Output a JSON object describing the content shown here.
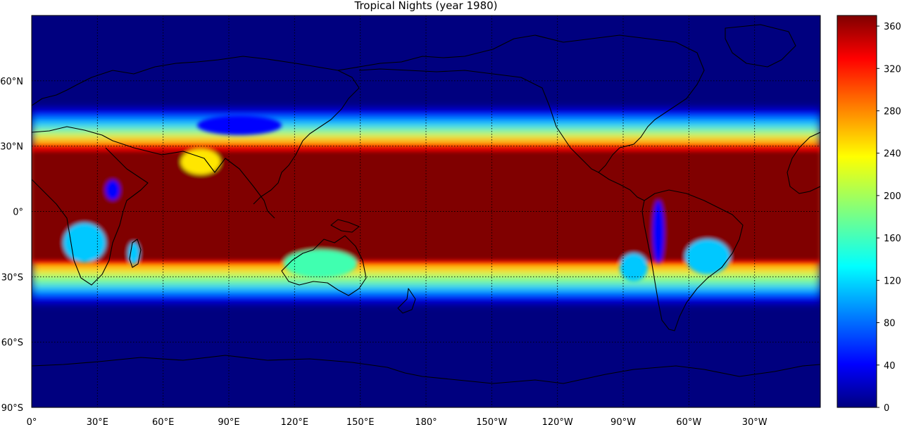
{
  "title": "Tropical Nights (year 1980)",
  "map": {
    "lat_labels": [
      {
        "label": "60°N",
        "lat": 60
      },
      {
        "label": "30°N",
        "lat": 30
      },
      {
        "label": "0°",
        "lat": 0
      },
      {
        "label": "30°S",
        "lat": -30
      },
      {
        "label": "60°S",
        "lat": -60
      },
      {
        "label": "90°S",
        "lat": -90
      }
    ],
    "lon_labels": [
      {
        "label": "0°",
        "lon": 0
      },
      {
        "label": "30°E",
        "lon": 30
      },
      {
        "label": "60°E",
        "lon": 60
      },
      {
        "label": "90°E",
        "lon": 90
      },
      {
        "label": "120°E",
        "lon": 120
      },
      {
        "label": "150°E",
        "lon": 150
      },
      {
        "label": "180°",
        "lon": 180
      },
      {
        "label": "150°W",
        "lon": 210
      },
      {
        "label": "120°W",
        "lon": 240
      },
      {
        "label": "90°W",
        "lon": 270
      },
      {
        "label": "60°W",
        "lon": 300
      },
      {
        "label": "30°W",
        "lon": 330
      }
    ],
    "lon_range": [
      0,
      360
    ],
    "lat_range": [
      -90,
      90
    ],
    "gridlines": "dotted"
  },
  "colorbar": {
    "ticks": [
      "0",
      "40",
      "80",
      "120",
      "160",
      "200",
      "240",
      "280",
      "320",
      "360"
    ],
    "range": [
      0,
      370
    ],
    "colormap": "jet"
  },
  "colors": {
    "ocean_low": "#00007f",
    "tropics_high": "#800000",
    "coastline": "#000000"
  }
}
